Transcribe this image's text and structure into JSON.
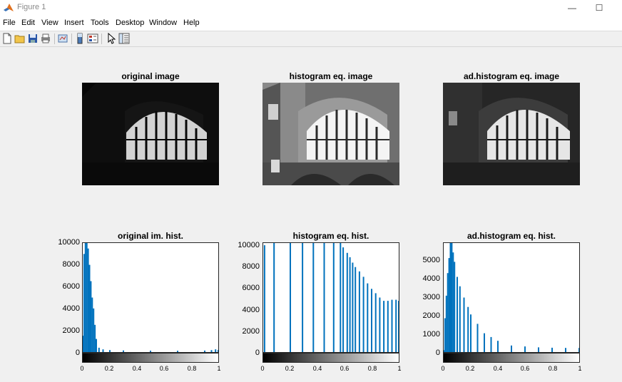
{
  "window": {
    "title": "Figure 1",
    "minimize_glyph": "—",
    "maximize_glyph": "☐"
  },
  "menu": [
    "File",
    "Edit",
    "View",
    "Insert",
    "Tools",
    "Desktop",
    "Window",
    "Help"
  ],
  "toolbar": [
    "new-figure-icon",
    "open-file-icon",
    "save-icon",
    "print-icon",
    "link-plot-icon",
    "colorbar-icon",
    "legend-icon",
    "pointer-icon",
    "property-inspector-icon"
  ],
  "images": [
    {
      "title": "original image",
      "brightness": "dark"
    },
    {
      "title": "histogram eq. image",
      "brightness": "equalized"
    },
    {
      "title": "ad.histogram eq. image",
      "brightness": "adaptive"
    }
  ],
  "histograms": [
    {
      "title": "original im. hist.",
      "yticks": [
        "0",
        "2000",
        "4000",
        "6000",
        "8000",
        "10000"
      ]
    },
    {
      "title": "histogram eq. hist.",
      "yticks": [
        "0",
        "2000",
        "4000",
        "6000",
        "8000",
        "10000"
      ]
    },
    {
      "title": "ad.histogram eq. hist.",
      "yticks": [
        "0",
        "1000",
        "2000",
        "3000",
        "4000",
        "5000"
      ]
    }
  ],
  "xticks": [
    "0",
    "0.2",
    "0.4",
    "0.6",
    "0.8",
    "1"
  ],
  "colors": {
    "bar": "#0072bd",
    "figure_bg": "#f0f0f0"
  },
  "chart_data": [
    {
      "type": "bar",
      "title": "original im. hist.",
      "xlim": [
        0,
        1
      ],
      "ylim": [
        0,
        10000
      ],
      "x": [
        0.0,
        0.01,
        0.02,
        0.03,
        0.04,
        0.05,
        0.06,
        0.07,
        0.08,
        0.09,
        0.1,
        0.12,
        0.15,
        0.2,
        0.3,
        0.5,
        0.7,
        0.9,
        0.95,
        0.98,
        1.0
      ],
      "values": [
        1500,
        9000,
        10000,
        10000,
        9500,
        8000,
        6500,
        5000,
        4000,
        2500,
        1200,
        400,
        250,
        180,
        150,
        130,
        120,
        140,
        180,
        250,
        200
      ]
    },
    {
      "type": "bar",
      "title": "histogram eq. hist.",
      "xlim": [
        0,
        1
      ],
      "ylim": [
        0,
        10000
      ],
      "x": [
        0.01,
        0.08,
        0.2,
        0.29,
        0.37,
        0.45,
        0.52,
        0.57,
        0.59,
        0.62,
        0.64,
        0.66,
        0.68,
        0.71,
        0.74,
        0.77,
        0.8,
        0.83,
        0.86,
        0.89,
        0.92,
        0.95,
        0.98,
        1.0
      ],
      "values": [
        9800,
        10000,
        10000,
        10000,
        10000,
        10000,
        10000,
        10000,
        9600,
        9100,
        8700,
        8200,
        7800,
        7400,
        6900,
        6300,
        5800,
        5400,
        5000,
        4700,
        4700,
        4800,
        4800,
        4700
      ]
    },
    {
      "type": "bar",
      "title": "ad.histogram eq. hist.",
      "xlim": [
        0,
        1
      ],
      "ylim": [
        0,
        5800
      ],
      "x": [
        0.0,
        0.01,
        0.02,
        0.03,
        0.04,
        0.05,
        0.06,
        0.07,
        0.08,
        0.1,
        0.12,
        0.15,
        0.18,
        0.2,
        0.25,
        0.3,
        0.35,
        0.4,
        0.5,
        0.6,
        0.7,
        0.8,
        0.9,
        1.0
      ],
      "values": [
        100,
        1800,
        3000,
        4200,
        5000,
        5800,
        5800,
        5300,
        4800,
        4000,
        3500,
        2900,
        2400,
        2000,
        1500,
        1000,
        800,
        600,
        350,
        300,
        250,
        230,
        220,
        220
      ]
    }
  ]
}
